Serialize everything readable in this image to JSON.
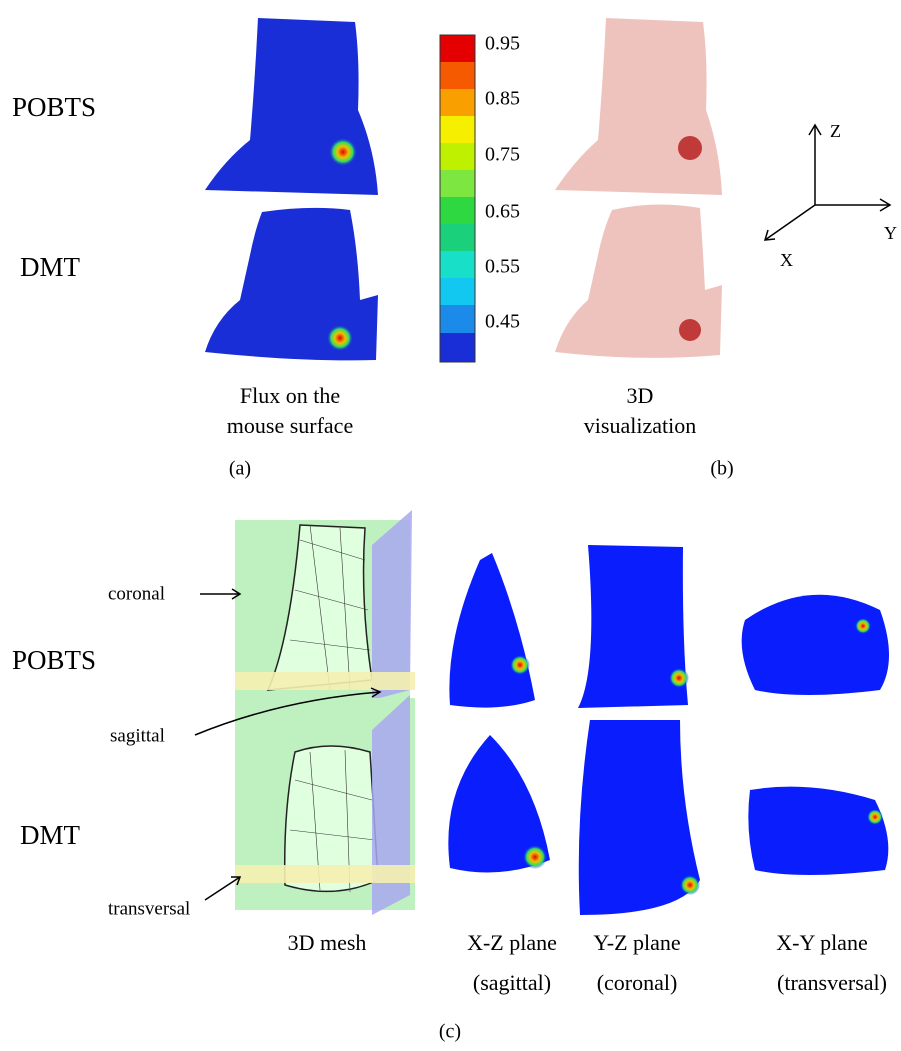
{
  "panel_a": {
    "rows": [
      "POBTS",
      "DMT"
    ],
    "caption": [
      "Flux on the",
      "mouse surface"
    ],
    "label": "(a)"
  },
  "colorbar": {
    "ticks": [
      "0.95",
      "0.85",
      "0.75",
      "0.65",
      "0.55",
      "0.45"
    ]
  },
  "panel_b": {
    "caption": [
      "3D",
      "visualization"
    ],
    "label": "(b)"
  },
  "axes": {
    "z": "Z",
    "y": "Y",
    "x": "X"
  },
  "panel_c": {
    "rows": [
      "POBTS",
      "DMT"
    ],
    "annotations": [
      "coronal",
      "sagittal",
      "transversal"
    ],
    "columns": [
      [
        "3D mesh"
      ],
      [
        "X-Z plane",
        "(sagittal)"
      ],
      [
        "Y-Z plane",
        "(coronal)"
      ],
      [
        "X-Y plane",
        "(transversal)"
      ]
    ],
    "label": "(c)"
  }
}
